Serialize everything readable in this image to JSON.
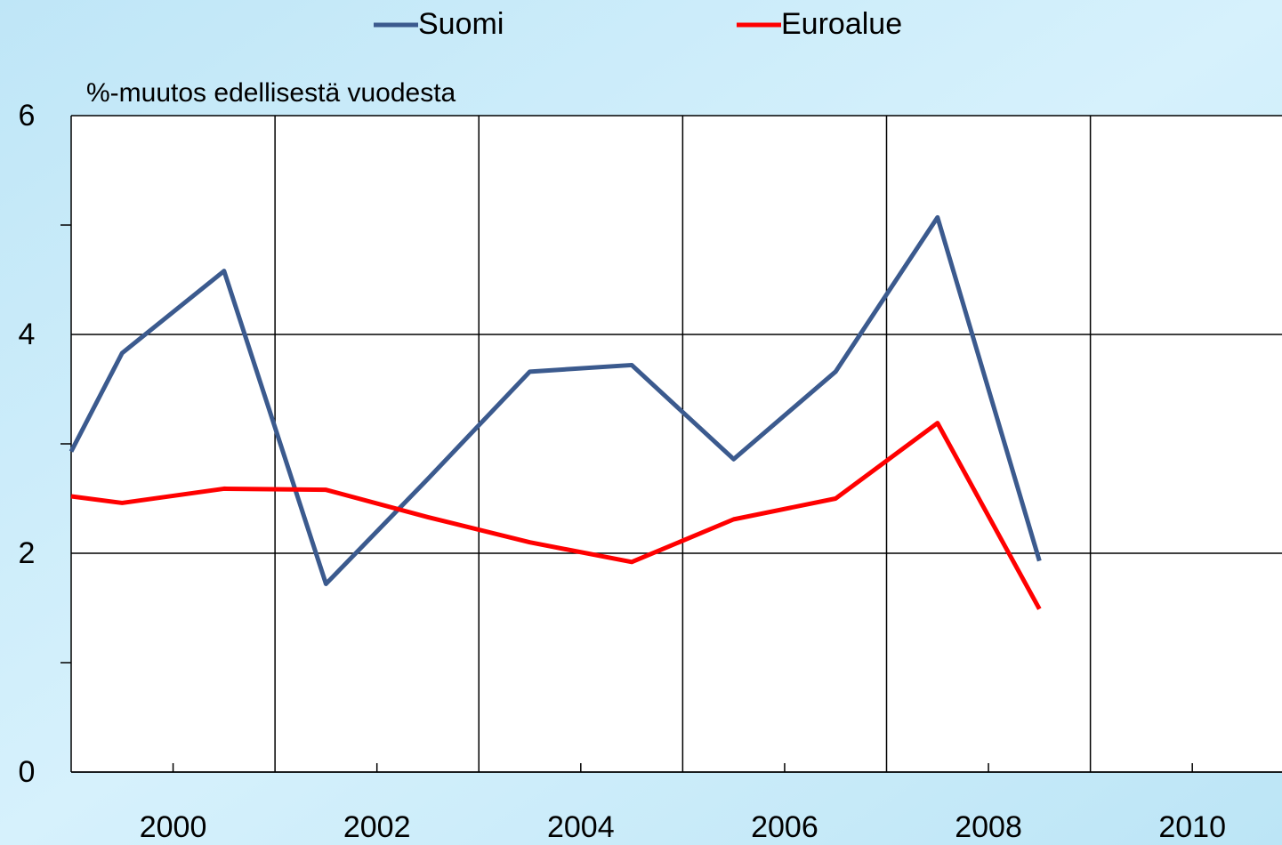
{
  "chart_data": {
    "type": "line",
    "y_label": "%-muutos  edellisestä vuodesta",
    "x": [
      1999,
      1999.5,
      2000.5,
      2001.5,
      2002.5,
      2003.5,
      2004.5,
      2005.5,
      2006.5,
      2007.5,
      2008.5
    ],
    "series": [
      {
        "name": "Suomi",
        "color": "#3b5a8e",
        "values": [
          2.93,
          3.83,
          4.58,
          1.72,
          2.68,
          3.66,
          3.72,
          2.86,
          3.66,
          5.07,
          1.93
        ]
      },
      {
        "name": "Euroalue",
        "color": "#ff0000",
        "values": [
          2.52,
          2.46,
          2.59,
          2.58,
          2.33,
          2.1,
          1.92,
          2.31,
          2.5,
          3.19,
          1.49
        ]
      }
    ],
    "xlim": [
      1999,
      2010.88
    ],
    "xticks": [
      2000,
      2002,
      2004,
      2006,
      2008,
      2010
    ],
    "xgrid": [
      2001,
      2003,
      2005,
      2007,
      2009
    ],
    "ylim": [
      0,
      6
    ],
    "yticks": [
      0,
      2,
      4,
      6
    ],
    "yminor": [
      1,
      3,
      5
    ],
    "grid": true
  }
}
